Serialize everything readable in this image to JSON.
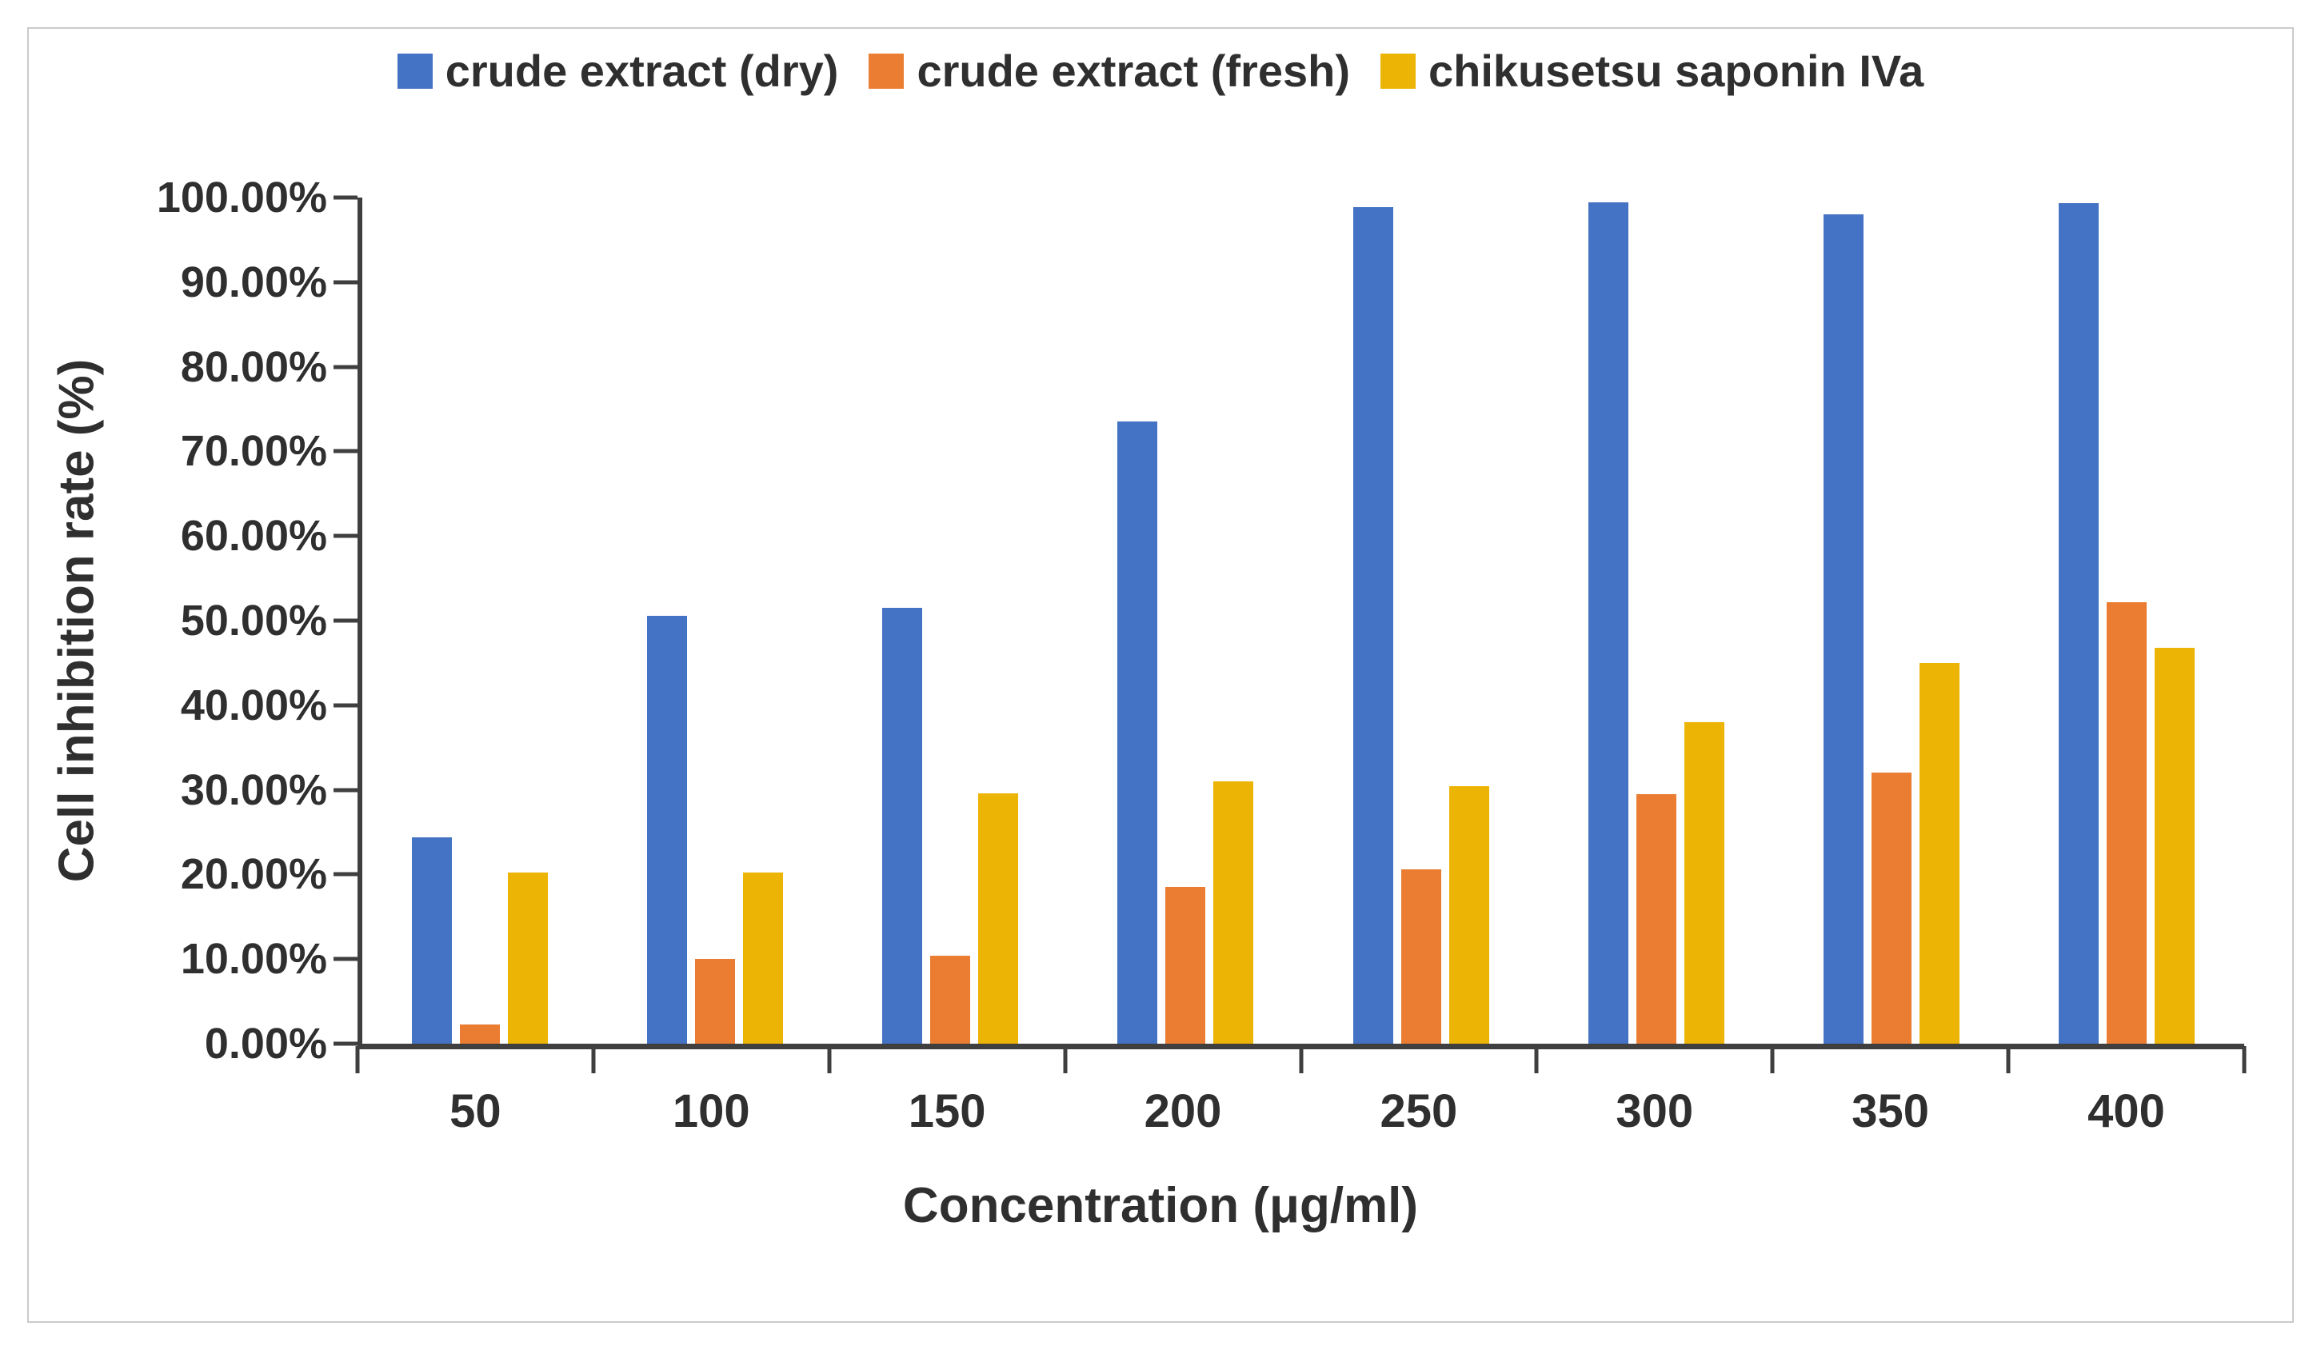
{
  "figure": {
    "background": "#ffffff",
    "border_color": "#cbcbcb",
    "axis_line_color": "#3f3f3f",
    "text_color": "#2f2f2f"
  },
  "chart_data": {
    "type": "bar",
    "title": "",
    "xlabel": "Concentration (μg/ml)",
    "ylabel": "Cell inhibition rate (%)",
    "categories": [
      "50",
      "100",
      "150",
      "200",
      "250",
      "300",
      "350",
      "400"
    ],
    "series": [
      {
        "name": "crude extract (dry)",
        "color": "#4472C4",
        "values": [
          24.4,
          50.6,
          51.5,
          73.5,
          98.9,
          99.4,
          98.0,
          99.3
        ]
      },
      {
        "name": "crude extract (fresh)",
        "color": "#EA7D31",
        "values": [
          2.3,
          10.0,
          10.4,
          18.5,
          20.6,
          29.5,
          32.0,
          52.2
        ]
      },
      {
        "name": "chikusetsu saponin IVa",
        "color": "#ECB404",
        "values": [
          20.2,
          20.2,
          29.6,
          31.0,
          30.4,
          38.0,
          45.0,
          46.8
        ]
      }
    ],
    "ylim": [
      0,
      100
    ],
    "y_ticks": [
      "0.00%",
      "10.00%",
      "20.00%",
      "30.00%",
      "40.00%",
      "50.00%",
      "60.00%",
      "70.00%",
      "80.00%",
      "90.00%",
      "100.00%"
    ],
    "grid": false,
    "legend_position": "top"
  }
}
